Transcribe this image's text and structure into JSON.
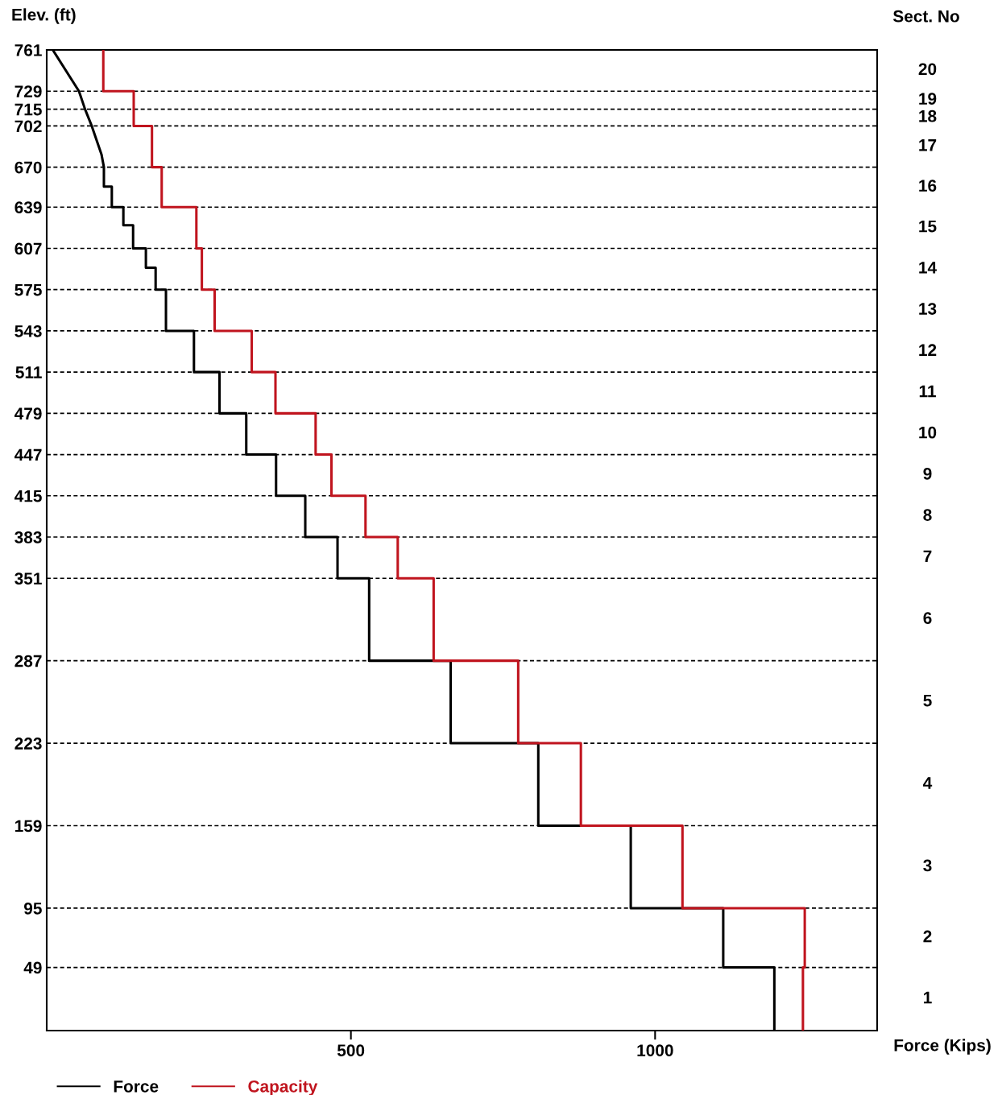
{
  "chart_data": {
    "type": "line",
    "xlabel": "Force (Kips)",
    "ylabel": "Elev. (ft)",
    "y2label": "Sect. No",
    "xlim": [
      0,
      1365
    ],
    "xticks": [
      500,
      1000
    ],
    "ylim": [
      0,
      761
    ],
    "yticks": [
      49,
      95,
      159,
      223,
      287,
      351,
      383,
      415,
      447,
      479,
      511,
      543,
      575,
      607,
      639,
      670,
      702,
      715,
      729,
      761
    ],
    "grid": "y",
    "legend": "bottom left",
    "line_style": "solid",
    "marker": "none",
    "series": [
      {
        "name": "Force",
        "color": "#000000",
        "x": [
          10,
          53,
          63,
          74,
          90,
          94,
          94,
          107,
          107,
          126,
          126,
          142,
          142,
          163,
          163,
          179,
          179,
          196,
          196,
          242,
          242,
          284,
          284,
          328,
          328,
          377,
          377,
          425,
          425,
          478,
          478,
          530,
          530,
          664,
          664,
          808,
          808,
          960,
          960,
          1112,
          1112,
          1196,
          1196
        ],
        "values": [
          761,
          729,
          715,
          702,
          680,
          670,
          655,
          655,
          639,
          639,
          625,
          625,
          607,
          607,
          592,
          592,
          575,
          575,
          543,
          543,
          511,
          511,
          479,
          479,
          447,
          447,
          415,
          415,
          383,
          383,
          351,
          351,
          287,
          287,
          223,
          223,
          159,
          159,
          95,
          95,
          49,
          49,
          0
        ]
      },
      {
        "name": "Capacity",
        "color": "#c0141e",
        "x": [
          93,
          93,
          143,
          143,
          173,
          173,
          189,
          189,
          246,
          246,
          255,
          255,
          276,
          276,
          337,
          337,
          376,
          376,
          442,
          442,
          468,
          468,
          524,
          524,
          577,
          577,
          636,
          636,
          775,
          775,
          878,
          878,
          1045,
          1045,
          1246,
          1246,
          1243,
          1243
        ],
        "values": [
          761,
          729,
          729,
          702,
          702,
          670,
          670,
          639,
          639,
          607,
          607,
          575,
          575,
          543,
          543,
          511,
          511,
          479,
          479,
          447,
          447,
          415,
          415,
          383,
          383,
          351,
          351,
          287,
          287,
          223,
          223,
          159,
          159,
          95,
          95,
          49,
          49,
          0
        ]
      }
    ],
    "annotations": [
      "20",
      "19",
      "18",
      "17",
      "16",
      "15",
      "14",
      "13",
      "12",
      "11",
      "10",
      "9",
      "8",
      "7",
      "6",
      "5",
      "4",
      "3",
      "2",
      "1"
    ]
  }
}
